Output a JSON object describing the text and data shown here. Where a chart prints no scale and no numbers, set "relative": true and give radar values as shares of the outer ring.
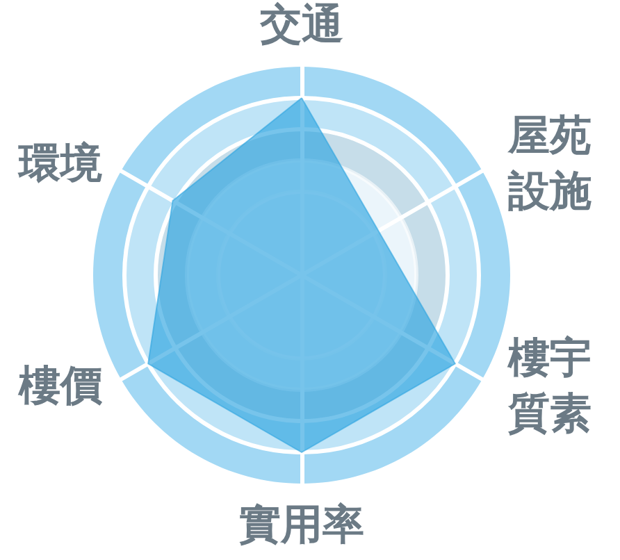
{
  "chart_data": {
    "type": "radar",
    "categories": [
      "交通",
      "屋苑設施",
      "樓宇質素",
      "實用率",
      "樓價",
      "環境"
    ],
    "relative": true,
    "grid": true,
    "marker": "none",
    "series": [
      {
        "color": "#2ea5e0",
        "values": [
          1,
          0.5,
          1,
          1,
          1,
          0.84
        ]
      }
    ]
  }
}
